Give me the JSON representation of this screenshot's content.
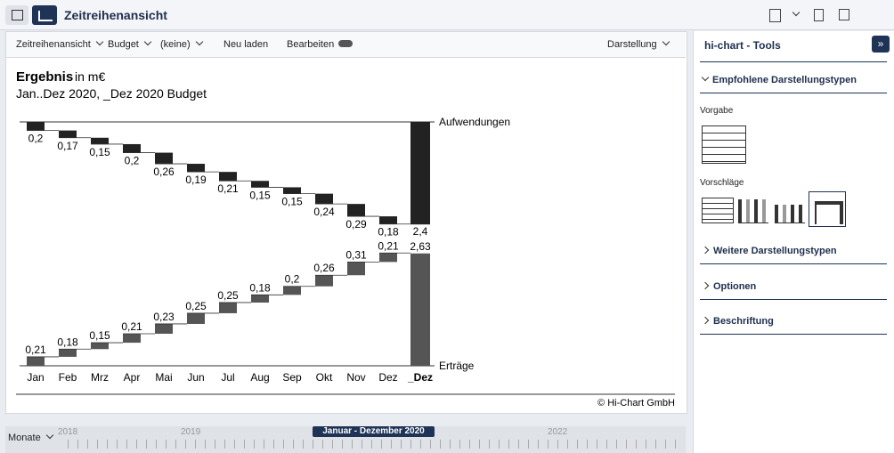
{
  "header": {
    "title": "Zeitreihenansicht"
  },
  "toolbar": {
    "items": [
      "Zeitreihenansicht",
      "Budget",
      "(keine)",
      "Neu laden",
      "Bearbeiten",
      "Darstellung"
    ]
  },
  "chart_data": {
    "type": "waterfall",
    "title": "Ergebnis",
    "unit": "in m€",
    "subtitle": "Jan..Dez 2020, _Dez 2020 Budget",
    "categories": [
      "Jan",
      "Feb",
      "Mrz",
      "Apr",
      "Mai",
      "Jun",
      "Jul",
      "Aug",
      "Sep",
      "Okt",
      "Nov",
      "Dez"
    ],
    "total_category": "_Dez",
    "series": [
      {
        "name": "Aufwendungen",
        "color": "#222222",
        "values": [
          0.2,
          0.17,
          0.15,
          0.2,
          0.26,
          0.19,
          0.21,
          0.15,
          0.15,
          0.24,
          0.29,
          0.18
        ],
        "value_labels": [
          "0,2",
          "0,17",
          "0,15",
          "0,2",
          "0,26",
          "0,19",
          "0,21",
          "0,15",
          "0,15",
          "0,24",
          "0,29",
          "0,18"
        ],
        "total": 2.4,
        "total_label": "2,4"
      },
      {
        "name": "Erträge",
        "color": "#555555",
        "values": [
          0.21,
          0.18,
          0.15,
          0.21,
          0.23,
          0.25,
          0.25,
          0.18,
          0.2,
          0.26,
          0.31,
          0.21
        ],
        "value_labels": [
          "0,21",
          "0,18",
          "0,15",
          "0,21",
          "0,23",
          "0,25",
          "0,25",
          "0,18",
          "0,2",
          "0,26",
          "0,31",
          "0,21"
        ],
        "total": 2.63,
        "total_label": "2,63"
      }
    ],
    "footer": "© Hi-Chart GmbH"
  },
  "panel": {
    "title": "hi-chart - Tools",
    "sections": [
      "Empfohlene Darstellungstypen",
      "Weitere Darstellungstypen",
      "Optionen",
      "Beschriftung"
    ],
    "default_label": "Vorgabe",
    "suggestions_label": "Vorschläge"
  },
  "timeline": {
    "unit": "Monate",
    "years": [
      "2018",
      "2019",
      "2022"
    ],
    "range": "Januar - Dezember 2020"
  }
}
